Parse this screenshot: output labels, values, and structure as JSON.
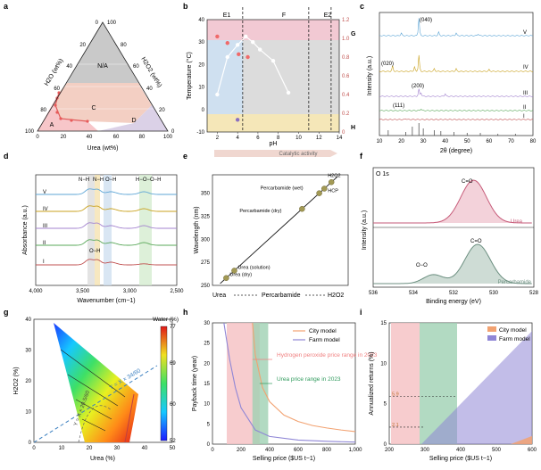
{
  "colors": {
    "axis": "#222222",
    "ternary_NA": "#c9c9c9",
    "ternary_C": "#f3cfc3",
    "ternary_D": "#d9cfe6",
    "ternary_A": "#f7c6c9",
    "pink_band": "#f2c9d3",
    "blue_band": "#cfe0f0",
    "gray_band": "#dcdcdc",
    "yellow_band": "#f5e7b8",
    "red_pts": "#f06a6a",
    "purple_pt": "#8a6fc0",
    "city": "#f2a271",
    "farm": "#8f86d6",
    "hp_region": "#f6c3c6",
    "urea_region": "#9fd1b3",
    "fit_line": "#111111",
    "spec_V": "#5ea6d6",
    "spec_IV": "#c9a11d",
    "spec_III": "#a383cf",
    "spec_II": "#5aa85a",
    "spec_I": "#c05050",
    "xps_urea": "#c65a78",
    "xps_perc": "#6c8f80"
  },
  "chart_data": [
    {
      "panel": "a",
      "type": "ternary",
      "xlabel": "Urea (wt%)",
      "left_label": "H2O (wt%)",
      "right_label": "H2O2 (wt%)",
      "ticks": [
        "0",
        "20",
        "40",
        "60",
        "80",
        "100"
      ],
      "regions": [
        "N/A",
        "C",
        "D",
        "A"
      ]
    },
    {
      "panel": "b",
      "type": "scatter",
      "xlabel": "pH",
      "ylabel": "Temperature (°C)",
      "y2label": "G",
      "y3label": "H",
      "xlim": [
        1,
        14
      ],
      "ylim": [
        -10,
        40
      ],
      "y2lim": [
        0,
        1.2
      ],
      "xticks": [
        2,
        4,
        6,
        8,
        10,
        12,
        14
      ],
      "yticks": [
        -10,
        0,
        10,
        20,
        30,
        40
      ],
      "y2ticks": [
        "0",
        "0.2",
        "0.4",
        "0.6",
        "0.8",
        "1.0",
        "1.2"
      ],
      "zones": [
        "E1",
        "F",
        "E2"
      ],
      "zone_bounds": [
        4.5,
        11,
        13.2
      ],
      "white_series": {
        "x": [
          2,
          3,
          4,
          4.8,
          5.5,
          6.2,
          7.5,
          9
        ],
        "y": [
          0.4,
          0.8,
          0.93,
          1.02,
          0.96,
          0.88,
          0.76,
          0.42
        ]
      },
      "red_points": {
        "x": [
          2,
          3,
          4.1,
          5
        ],
        "y": [
          1.02,
          0.95,
          0.83,
          0.8
        ]
      },
      "purple_point": {
        "x": 4,
        "y": 0.13
      },
      "arrow_label": "Catalytic activity"
    },
    {
      "panel": "c",
      "type": "line",
      "xlabel": "2θ (degree)",
      "ylabel": "Intensity (a.u.)",
      "xlim": [
        10,
        80
      ],
      "xticks": [
        10,
        20,
        30,
        40,
        50,
        60,
        70,
        80
      ],
      "series_labels": [
        "V",
        "IV",
        "III",
        "II",
        "I"
      ],
      "peak_labels": [
        "(040)",
        "(020)",
        "(200)",
        "(111)"
      ]
    },
    {
      "panel": "d",
      "type": "line",
      "xlabel": "Wavenumber (cm−1)",
      "ylabel": "Absorbance (a.u.)",
      "xlim": [
        4000,
        2500
      ],
      "xticks": [
        "4,000",
        "3,500",
        "3,000",
        "2,500"
      ],
      "series_labels": [
        "V",
        "IV",
        "III",
        "II",
        "I"
      ],
      "band_labels": [
        "N−H",
        "N−H",
        "O−H",
        "H−O−O−H",
        "O−H"
      ]
    },
    {
      "panel": "e",
      "type": "scatter",
      "xlabel": "",
      "ylabel": "Wavelength (nm)",
      "ylim": [
        250,
        370
      ],
      "yticks": [
        250,
        275,
        300,
        325,
        350
      ],
      "points": [
        {
          "label": "Urea (dry)",
          "y": 258
        },
        {
          "label": "Urea (solution)",
          "y": 266
        },
        {
          "label": "Percarbamide (dry)",
          "y": 333
        },
        {
          "label": "Percarbamide (wet)",
          "y": 350
        },
        {
          "label": "HCP",
          "y": 355
        },
        {
          "label": "H2O2",
          "y": 362
        }
      ],
      "legend": [
        "Urea",
        "Percarbamide",
        "H2O2"
      ]
    },
    {
      "panel": "f",
      "type": "line",
      "title": "O 1s",
      "xlabel": "Binding energy (eV)",
      "ylabel": "Intensity (a.u.)",
      "xlim": [
        536,
        528
      ],
      "xticks": [
        536,
        534,
        532,
        530,
        528
      ],
      "series": [
        {
          "name": "Urea",
          "peak": "C=O"
        },
        {
          "name": "Percarbamide",
          "peak": "C=O",
          "shoulder": "O−O"
        }
      ]
    },
    {
      "panel": "g",
      "type": "heatmap",
      "xlabel": "Urea (%)",
      "ylabel": "H2O2 (%)",
      "xlim": [
        0,
        50
      ],
      "ylim": [
        0,
        40
      ],
      "xticks": [
        0,
        10,
        20,
        30,
        40,
        50
      ],
      "yticks": [
        0,
        10,
        20,
        30,
        40
      ],
      "colorbar_title": "Water (%)",
      "colorbar_range": [
        52,
        77
      ],
      "colorbar_ticks": [
        52,
        60,
        69,
        77
      ],
      "annotations": [
        "Y = X × 34/60",
        "Y = X × 20.5/60"
      ]
    },
    {
      "panel": "h",
      "type": "line",
      "xlabel": "Selling price ($US t−1)",
      "ylabel": "Payback time (year)",
      "xlim": [
        0,
        1000
      ],
      "ylim": [
        0,
        30
      ],
      "xticks": [
        0,
        200,
        400,
        600,
        800,
        1000
      ],
      "yticks": [
        0,
        5,
        10,
        15,
        20,
        25,
        30
      ],
      "series": [
        {
          "name": "City model",
          "x": [
            280,
            300,
            350,
            400,
            500,
            600,
            700,
            800,
            900,
            1000
          ],
          "y": [
            30,
            22,
            14,
            10.5,
            7.2,
            5.6,
            4.6,
            4,
            3.5,
            3.1
          ]
        },
        {
          "name": "Farm model",
          "x": [
            80,
            120,
            160,
            200,
            300,
            400,
            600,
            800,
            1000
          ],
          "y": [
            30,
            21,
            14,
            9,
            3.5,
            1.9,
            1,
            0.7,
            0.5
          ]
        }
      ],
      "regions": [
        {
          "label": "Hydrogen peroxide price range in 2023",
          "x": [
            100,
            330
          ]
        },
        {
          "label": "Urea price range in 2023",
          "x": [
            280,
            390
          ]
        }
      ]
    },
    {
      "panel": "i",
      "type": "area",
      "xlabel": "Selling price ($US t−1)",
      "ylabel": "Annualized returns (%)",
      "xlim": [
        200,
        600
      ],
      "ylim": [
        0,
        15
      ],
      "xticks": [
        200,
        300,
        400,
        500,
        600
      ],
      "yticks": [
        0,
        5,
        10,
        15
      ],
      "series": [
        {
          "name": "City model",
          "x": [
            540,
            600
          ],
          "y": [
            0,
            1
          ]
        },
        {
          "name": "Farm model",
          "x": [
            290,
            600
          ],
          "y": [
            0,
            14
          ]
        }
      ],
      "markers": [
        {
          "label": "5.9",
          "y": 5.9,
          "x": 390
        },
        {
          "label": "2.1",
          "y": 2.1,
          "x": 300
        }
      ]
    }
  ]
}
